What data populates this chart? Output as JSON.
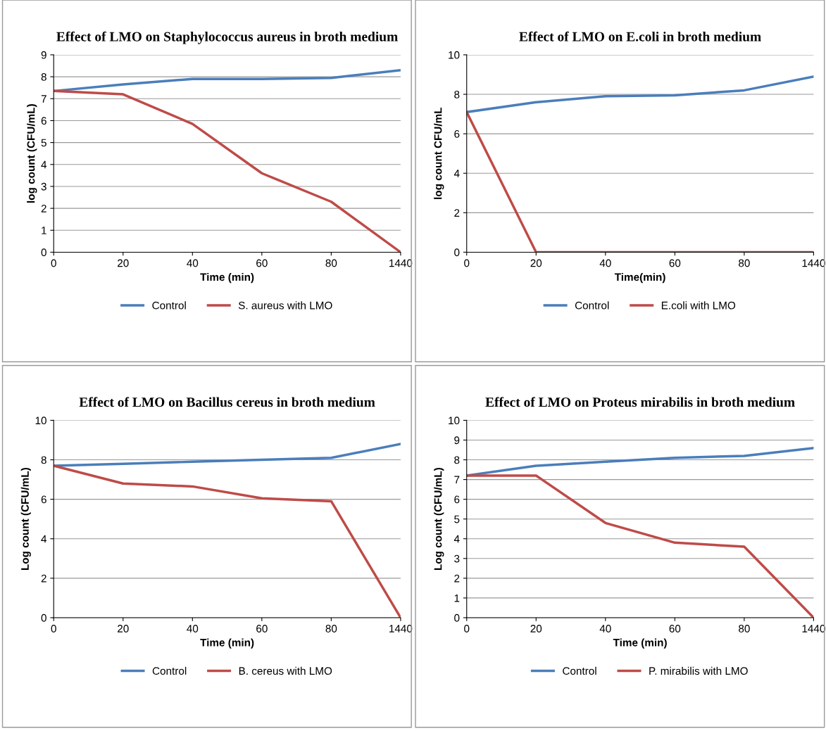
{
  "chart_data": [
    {
      "type": "line",
      "title": "Effect of LMO on Staphylococcus aureus in broth medium",
      "xlabel": "Time (min)",
      "ylabel": "log count (CFU/mL)",
      "categories": [
        "0",
        "20",
        "40",
        "60",
        "80",
        "1440"
      ],
      "ylim": [
        0,
        9
      ],
      "yticks": [
        0,
        1,
        2,
        3,
        4,
        5,
        6,
        7,
        8,
        9
      ],
      "grid": "y",
      "legend": "bottom",
      "marker": "none",
      "line_style": "solid",
      "series": [
        {
          "name": "Control",
          "color": "#4a7ebb",
          "values": [
            7.35,
            7.65,
            7.9,
            7.9,
            7.95,
            8.3
          ]
        },
        {
          "name": "S. aureus with LMO",
          "color": "#be4b48",
          "values": [
            7.35,
            7.2,
            5.85,
            3.6,
            2.3,
            0
          ]
        }
      ]
    },
    {
      "type": "line",
      "title": "Effect of LMO on E.coli in broth medium",
      "xlabel": "Time(min)",
      "ylabel": "log count CFU/mL",
      "categories": [
        "0",
        "20",
        "40",
        "60",
        "80",
        "1440"
      ],
      "ylim": [
        0,
        10
      ],
      "yticks": [
        0,
        2,
        4,
        6,
        8,
        10
      ],
      "grid": "y",
      "legend": "bottom",
      "marker": "none",
      "line_style": "solid",
      "series": [
        {
          "name": "Control",
          "color": "#4a7ebb",
          "values": [
            7.1,
            7.6,
            7.9,
            7.95,
            8.2,
            8.9
          ]
        },
        {
          "name": "E.coli with LMO",
          "color": "#be4b48",
          "values": [
            7.1,
            0,
            0,
            0,
            0,
            0
          ]
        }
      ]
    },
    {
      "type": "line",
      "title": "Effect of LMO on Bacillus cereus in broth medium",
      "xlabel": "Time (min)",
      "ylabel": "Log count (CFU/mL)",
      "categories": [
        "0",
        "20",
        "40",
        "60",
        "80",
        "1440"
      ],
      "ylim": [
        0,
        10
      ],
      "yticks": [
        0,
        2,
        4,
        6,
        8,
        10
      ],
      "grid": "y",
      "legend": "bottom",
      "marker": "none",
      "line_style": "solid",
      "series": [
        {
          "name": "Control",
          "color": "#4a7ebb",
          "values": [
            7.7,
            7.8,
            7.9,
            8.0,
            8.1,
            8.8
          ]
        },
        {
          "name": "B. cereus with LMO",
          "color": "#be4b48",
          "values": [
            7.7,
            6.8,
            6.65,
            6.05,
            5.9,
            0
          ]
        }
      ]
    },
    {
      "type": "line",
      "title": "Effect of LMO on Proteus mirabilis in broth medium",
      "xlabel": "Time (min)",
      "ylabel": "Log count (CFU/mL)",
      "categories": [
        "0",
        "20",
        "40",
        "60",
        "80",
        "1440"
      ],
      "ylim": [
        0,
        10
      ],
      "yticks": [
        0,
        1,
        2,
        3,
        4,
        5,
        6,
        7,
        8,
        9,
        10
      ],
      "grid": "y",
      "legend": "bottom",
      "marker": "none",
      "line_style": "solid",
      "series": [
        {
          "name": "Control",
          "color": "#4a7ebb",
          "values": [
            7.2,
            7.7,
            7.9,
            8.1,
            8.2,
            8.6
          ]
        },
        {
          "name": "P. mirabilis with LMO",
          "color": "#be4b48",
          "values": [
            7.2,
            7.2,
            4.8,
            3.8,
            3.6,
            0
          ]
        }
      ]
    }
  ]
}
